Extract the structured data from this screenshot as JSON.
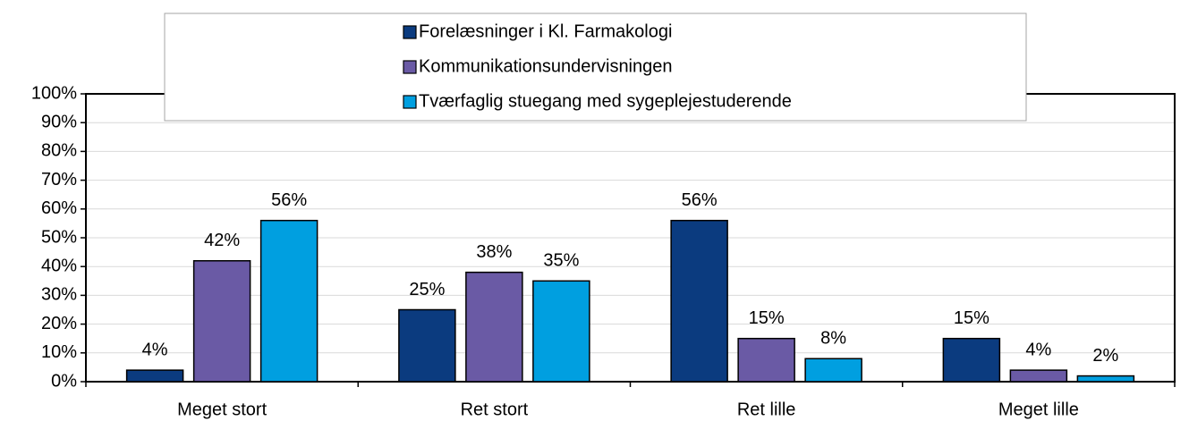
{
  "chart_data": {
    "type": "bar",
    "categories": [
      "Meget stort",
      "Ret stort",
      "Ret lille",
      "Meget lille"
    ],
    "series": [
      {
        "name": "Forelæsninger i Kl. Farmakologi",
        "color": "#0b3b7f",
        "values": [
          4,
          25,
          56,
          15
        ],
        "value_labels": [
          "4%",
          "25%",
          "56%",
          "15%"
        ]
      },
      {
        "name": "Kommunikationsundervisningen",
        "color": "#6a5aa5",
        "values": [
          42,
          38,
          15,
          4
        ],
        "value_labels": [
          "42%",
          "38%",
          "15%",
          "4%"
        ]
      },
      {
        "name": "Tværfaglig stuegang med sygeplejestuderende",
        "color": "#009fe0",
        "values": [
          56,
          35,
          8,
          2
        ],
        "value_labels": [
          "56%",
          "35%",
          "8%",
          "2%"
        ]
      }
    ],
    "ylim": [
      0,
      100
    ],
    "yticks": [
      {
        "value": 0,
        "label": "0%"
      },
      {
        "value": 10,
        "label": "10%"
      },
      {
        "value": 20,
        "label": "20%"
      },
      {
        "value": 30,
        "label": "30%"
      },
      {
        "value": 40,
        "label": "40%"
      },
      {
        "value": 50,
        "label": "50%"
      },
      {
        "value": 60,
        "label": "60%"
      },
      {
        "value": 70,
        "label": "70%"
      },
      {
        "value": 80,
        "label": "80%"
      },
      {
        "value": 90,
        "label": "90%"
      },
      {
        "value": 100,
        "label": "100%"
      }
    ],
    "grid": true,
    "legend": "top"
  }
}
